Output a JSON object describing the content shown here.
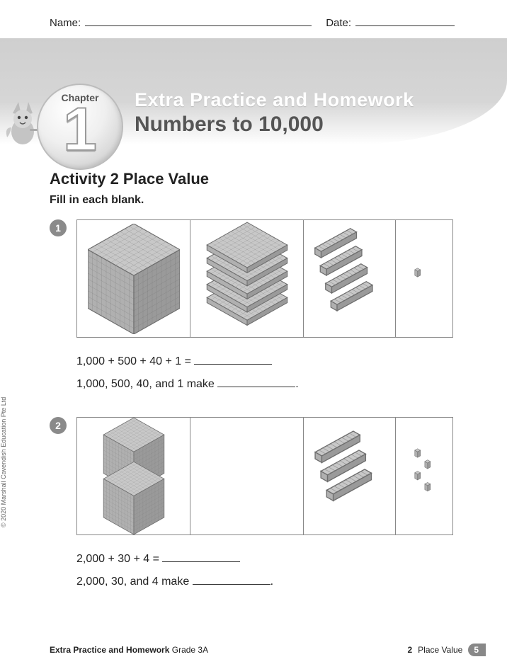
{
  "header": {
    "name_label": "Name:",
    "date_label": "Date:"
  },
  "banner": {
    "chapter_label": "Chapter",
    "chapter_number": "1",
    "line1": "Extra Practice and Homework",
    "line2": "Numbers to 10,000"
  },
  "activity": {
    "title": "Activity 2   Place Value",
    "instruction": "Fill in each blank."
  },
  "problems": [
    {
      "num": "1",
      "blocks": {
        "thousands": 1,
        "hundreds": 5,
        "tens": 4,
        "ones": 1
      },
      "eq1_left": "1,000 + 500 + 40 + 1 = ",
      "eq2_left": "1,000, 500, 40, and 1 make ",
      "eq2_tail": "."
    },
    {
      "num": "2",
      "blocks": {
        "thousands": 2,
        "hundreds": 0,
        "tens": 3,
        "ones": 4
      },
      "eq1_left": "2,000 + 30 + 4 = ",
      "eq2_left": "2,000, 30, and 4 make ",
      "eq2_tail": "."
    }
  ],
  "copyright": "© 2020 Marshall Cavendish Education Pte Ltd",
  "footer": {
    "left_bold": "Extra Practice and Homework",
    "left_grade": "Grade 3A",
    "section_num": "2",
    "section_title": "Place Value",
    "page_num": "5"
  },
  "style": {
    "block_fill": "#b0b0b0",
    "block_stroke": "#6e6e6e",
    "block_top": "#c8c8c8",
    "block_side": "#9a9a9a"
  }
}
